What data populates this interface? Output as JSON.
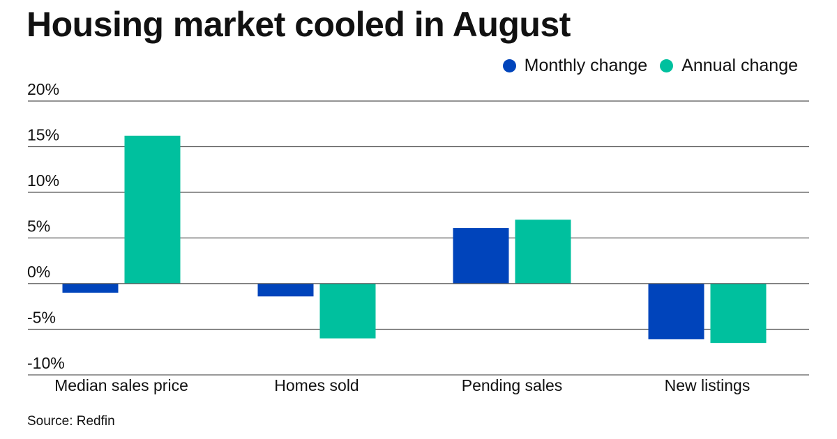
{
  "chart_data": {
    "type": "bar",
    "title": "Housing market cooled in August",
    "xlabel": "",
    "ylabel": "",
    "categories": [
      "Median sales price",
      "Homes sold",
      "Pending sales",
      "New listings"
    ],
    "series": [
      {
        "name": "Monthly change",
        "color": "#0044BB",
        "values": [
          -1.0,
          -1.4,
          6.1,
          -6.1
        ]
      },
      {
        "name": "Annual change",
        "color": "#00C09E",
        "values": [
          16.2,
          -6.0,
          7.0,
          -6.5
        ]
      }
    ],
    "ylim": [
      -10,
      20
    ],
    "yticks": [
      20,
      15,
      10,
      5,
      0,
      -5,
      -10
    ],
    "ytick_labels": [
      "20%",
      "15%",
      "10%",
      "5%",
      "0%",
      "-5%",
      "-10%"
    ],
    "grid": true,
    "legend_position": "top-right",
    "source": "Source: Redfin"
  },
  "colors": {
    "monthly": "#0044BB",
    "annual": "#00C09E",
    "gridline": "#555555",
    "baseline": "#999999"
  }
}
